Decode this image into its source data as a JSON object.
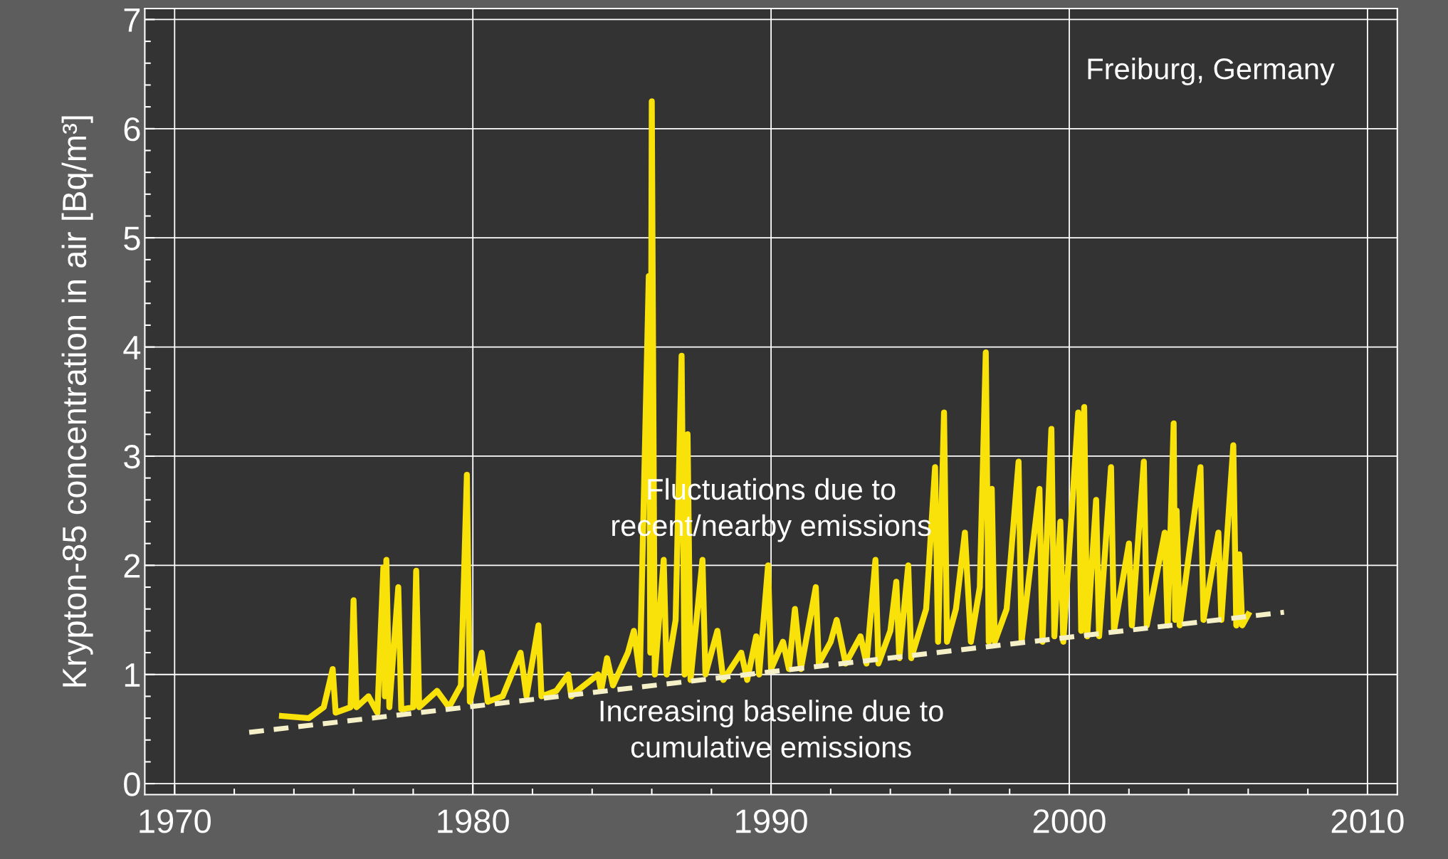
{
  "chart_data": {
    "type": "line",
    "ylabel": "Krypton-85 concentration in air [Bq/m³]",
    "annotations": [
      "Freiburg, Germany",
      "Fluctuations due to\nrecent/nearby emissions",
      "Increasing baseline due to\ncumulative emissions"
    ],
    "xlim": [
      1969,
      2011
    ],
    "xticks": [
      1970,
      1980,
      1990,
      2000,
      2010
    ],
    "ylim": [
      -0.1,
      7.1
    ],
    "yticks": [
      0,
      1,
      2,
      3,
      4,
      5,
      6,
      7
    ],
    "grid": true,
    "series": [
      {
        "color": "#f9e20a",
        "line_style": "solid",
        "x": [
          1973.6,
          1974.5,
          1975.0,
          1975.3,
          1975.4,
          1975.9,
          1976.0,
          1976.1,
          1976.5,
          1976.8,
          1977.0,
          1977.05,
          1977.1,
          1977.2,
          1977.5,
          1977.6,
          1978.0,
          1978.1,
          1978.2,
          1978.8,
          1979.2,
          1979.6,
          1979.8,
          1979.9,
          1980.3,
          1980.5,
          1981.0,
          1981.6,
          1981.8,
          1982.2,
          1982.3,
          1982.8,
          1983.2,
          1983.3,
          1983.5,
          1984.2,
          1984.3,
          1984.5,
          1984.7,
          1985.2,
          1985.4,
          1985.6,
          1985.9,
          1985.95,
          1986.0,
          1986.1,
          1986.4,
          1986.5,
          1986.8,
          1987.0,
          1987.1,
          1987.2,
          1987.3,
          1987.7,
          1987.8,
          1988.2,
          1988.4,
          1989.0,
          1989.2,
          1989.5,
          1989.6,
          1989.9,
          1990.0,
          1990.4,
          1990.6,
          1990.8,
          1991.0,
          1991.5,
          1991.6,
          1992.0,
          1992.2,
          1992.5,
          1993.0,
          1993.2,
          1993.5,
          1993.6,
          1994.0,
          1994.2,
          1994.3,
          1994.6,
          1994.7,
          1995.2,
          1995.5,
          1995.6,
          1995.8,
          1995.9,
          1996.2,
          1996.5,
          1996.7,
          1997.0,
          1997.2,
          1997.3,
          1997.4,
          1997.5,
          1997.9,
          1998.3,
          1998.4,
          1998.7,
          1999.0,
          1999.1,
          1999.4,
          1999.5,
          1999.7,
          1999.8,
          2000.3,
          2000.4,
          2000.5,
          2000.6,
          2000.9,
          2001.0,
          2001.4,
          2001.5,
          2002.0,
          2002.1,
          2002.5,
          2002.6,
          2003.2,
          2003.3,
          2003.5,
          2003.55,
          2003.6,
          2003.7,
          2004.4,
          2004.5,
          2005.0,
          2005.1,
          2005.5,
          2005.6,
          2005.7,
          2005.8,
          2006.0
        ],
        "values": [
          0.62,
          0.6,
          0.7,
          1.05,
          0.65,
          0.7,
          1.68,
          0.7,
          0.8,
          0.65,
          1.98,
          0.8,
          2.05,
          0.7,
          1.8,
          0.68,
          0.7,
          1.95,
          0.7,
          0.85,
          0.7,
          0.9,
          2.83,
          0.75,
          1.2,
          0.75,
          0.8,
          1.2,
          0.8,
          1.45,
          0.8,
          0.85,
          1.0,
          0.8,
          0.85,
          1.0,
          0.85,
          1.15,
          0.9,
          1.2,
          1.4,
          1.0,
          4.65,
          1.2,
          6.25,
          1.0,
          2.05,
          1.0,
          1.5,
          3.92,
          1.0,
          3.2,
          0.95,
          2.05,
          1.0,
          1.4,
          0.95,
          1.2,
          0.95,
          1.35,
          1.0,
          2.0,
          1.05,
          1.3,
          1.05,
          1.6,
          1.05,
          1.8,
          1.1,
          1.3,
          1.5,
          1.1,
          1.35,
          1.1,
          2.05,
          1.1,
          1.4,
          1.85,
          1.15,
          2.0,
          1.15,
          1.6,
          2.9,
          1.3,
          3.4,
          1.3,
          1.6,
          2.3,
          1.3,
          1.8,
          3.95,
          1.3,
          2.7,
          1.3,
          1.6,
          2.95,
          1.3,
          2.0,
          2.7,
          1.3,
          3.25,
          1.35,
          2.4,
          1.3,
          3.4,
          1.4,
          3.45,
          1.35,
          2.6,
          1.35,
          2.9,
          1.4,
          2.2,
          1.45,
          2.95,
          1.45,
          2.3,
          1.45,
          3.3,
          1.5,
          2.5,
          1.45,
          2.9,
          1.5,
          2.3,
          1.5,
          3.1,
          1.45,
          2.1,
          1.45,
          1.55
        ]
      },
      {
        "color": "#f5f0c8",
        "line_style": "dashed",
        "x": [
          1972.5,
          2007.2
        ],
        "values": [
          0.47,
          1.57
        ]
      }
    ]
  }
}
